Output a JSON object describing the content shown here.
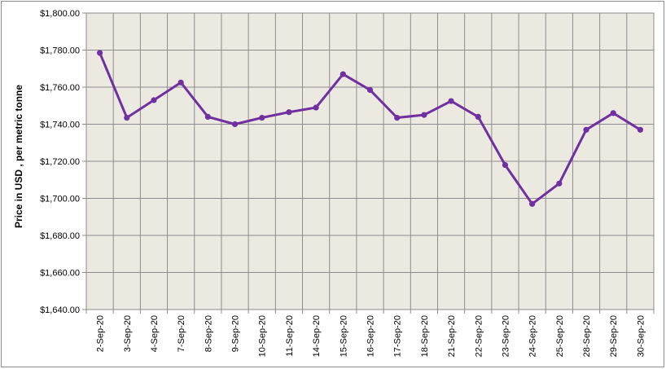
{
  "chart_data": {
    "type": "line",
    "title": "",
    "xlabel": "",
    "ylabel": "Price in USD , per metric tonne",
    "ylim": [
      1640,
      1800
    ],
    "y_ticks": [
      "$1,640.00",
      "$1,660.00",
      "$1,680.00",
      "$1,700.00",
      "$1,720.00",
      "$1,740.00",
      "$1,760.00",
      "$1,780.00",
      "$1,800.00"
    ],
    "y_tick_values": [
      1640,
      1660,
      1680,
      1700,
      1720,
      1740,
      1760,
      1780,
      1800
    ],
    "grid": true,
    "legend": "none",
    "categories": [
      "2-Sep-20",
      "3-Sep-20",
      "4-Sep-20",
      "7-Sep-20",
      "8-Sep-20",
      "9-Sep-20",
      "10-Sep-20",
      "11-Sep-20",
      "14-Sep-20",
      "15-Sep-20",
      "16-Sep-20",
      "17-Sep-20",
      "18-Sep-20",
      "21-Sep-20",
      "22-Sep-20",
      "23-Sep-20",
      "24-Sep-20",
      "25-Sep-20",
      "28-Sep-20",
      "29-Sep-20",
      "30-Sep-20"
    ],
    "series": [
      {
        "values": [
          1778.5,
          1743.5,
          1753,
          1762.5,
          1744,
          1740,
          1743.5,
          1746.5,
          1749,
          1767,
          1758.5,
          1743.5,
          1745,
          1752.5,
          1744,
          1718,
          1697,
          1708,
          1737,
          1746,
          1737
        ],
        "color": "#7030a0"
      }
    ],
    "colors": {
      "plot_background": "#ece9e1",
      "gridline": "#8c8c8c",
      "series": "#7030a0"
    }
  }
}
